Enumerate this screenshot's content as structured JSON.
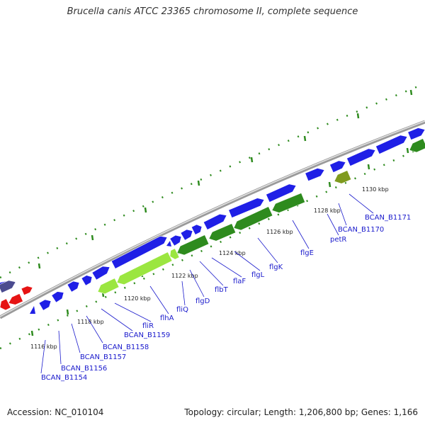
{
  "title": "Brucella canis ATCC 23365 chromosome II, complete sequence",
  "footer": {
    "accession": "Accession: NC_010104",
    "summary": "Topology: circular; Length: 1,206,800 bp; Genes: 1,166"
  },
  "colors": {
    "gene_blue": "#1f1fe6",
    "gene_green": "#2e8b1e",
    "gene_lightgreen": "#9be640",
    "gene_olive": "#7f9a1e",
    "gene_red": "#e61414",
    "gene_slate": "#4b4b8f",
    "label_blue": "#1a1acc",
    "tick_green": "#2e8b1e",
    "backbone": "#999999"
  },
  "kbp_markers": [
    "1116 kbp",
    "1118 kbp",
    "1120 kbp",
    "1122 kbp",
    "1124 kbp",
    "1126 kbp",
    "1128 kbp",
    "1130 kbp"
  ],
  "gene_labels": [
    "BCAN_B1154",
    "BCAN_B1156",
    "BCAN_B1157",
    "BCAN_B1158",
    "BCAN_B1159",
    "fliR",
    "flhA",
    "fliQ",
    "flgD",
    "flbT",
    "flaF",
    "flgL",
    "flgK",
    "flgE",
    "petR",
    "BCAN_B1170",
    "BCAN_B1171"
  ]
}
